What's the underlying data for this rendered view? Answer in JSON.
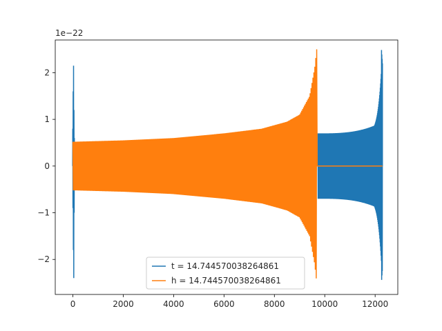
{
  "chart_data": {
    "type": "line",
    "title": "",
    "xlabel": "",
    "ylabel": "",
    "xlim": [
      -700,
      12900
    ],
    "ylim": [
      -2.75,
      2.7
    ],
    "y_offset_text": "1e−22",
    "grid": false,
    "legend_position": "lower-center",
    "x_ticks": [
      {
        "value": 0,
        "label": "0"
      },
      {
        "value": 2000,
        "label": "2000"
      },
      {
        "value": 4000,
        "label": "4000"
      },
      {
        "value": 6000,
        "label": "6000"
      },
      {
        "value": 8000,
        "label": "8000"
      },
      {
        "value": 10000,
        "label": "10000"
      },
      {
        "value": 12000,
        "label": "12000"
      }
    ],
    "y_ticks": [
      {
        "value": -2,
        "label": "−2"
      },
      {
        "value": -1,
        "label": "−1"
      },
      {
        "value": 0,
        "label": "0"
      },
      {
        "value": 1,
        "label": "1"
      },
      {
        "value": 2,
        "label": "2"
      }
    ],
    "series": [
      {
        "name": "t = 14.744570038264861",
        "color": "#1f77b4",
        "spike": {
          "x": 0,
          "max": 2.15,
          "min": -2.4
        },
        "chirp": {
          "x_start": 9730,
          "x_end": 12290,
          "amp_start": 0.7,
          "amp_end": 2.5
        }
      },
      {
        "name": "h = 14.744570038264861",
        "color": "#ff7f0e",
        "envelope_x": [
          0,
          2000,
          4000,
          6000,
          7500,
          8500,
          9000,
          9400,
          9600,
          9680
        ],
        "envelope_amp": [
          0.52,
          0.55,
          0.6,
          0.7,
          0.8,
          0.95,
          1.1,
          1.5,
          2.1,
          2.5
        ],
        "flat_after": {
          "x_start": 9730,
          "x_end": 12290,
          "value": 0
        }
      }
    ]
  }
}
